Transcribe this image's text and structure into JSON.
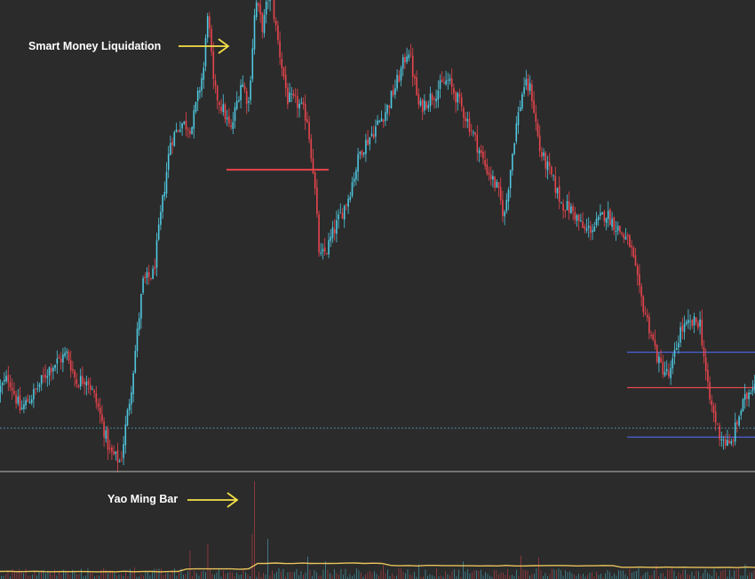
{
  "chart_data": {
    "type": "candlestick",
    "title": "",
    "xlabel": "",
    "ylabel": "",
    "ylim": [
      0,
      100
    ],
    "volume_ylim": [
      0,
      100
    ],
    "grid": false,
    "colors": {
      "up": "#4fc8e0",
      "down": "#e8454d",
      "volume_ma": "#e8c25a",
      "level_red": "#e8454d",
      "level_blue": "#4a63d9",
      "dotted_level": "#4fa9c8",
      "separator": "#bdbdbd",
      "arrow": "#f5e04a"
    },
    "waypoints": [
      [
        0,
        17
      ],
      [
        12,
        20
      ],
      [
        25,
        13
      ],
      [
        42,
        17
      ],
      [
        58,
        22
      ],
      [
        78,
        25
      ],
      [
        88,
        19
      ],
      [
        100,
        20
      ],
      [
        112,
        14
      ],
      [
        126,
        4
      ],
      [
        138,
        2
      ],
      [
        150,
        18
      ],
      [
        163,
        40
      ],
      [
        175,
        42
      ],
      [
        183,
        54
      ],
      [
        194,
        70
      ],
      [
        206,
        74
      ],
      [
        218,
        73
      ],
      [
        232,
        86
      ],
      [
        236,
        98
      ],
      [
        243,
        81
      ],
      [
        255,
        76
      ],
      [
        262,
        72
      ],
      [
        274,
        83
      ],
      [
        282,
        78
      ],
      [
        290,
        100
      ],
      [
        298,
        94
      ],
      [
        306,
        103
      ],
      [
        316,
        90
      ],
      [
        326,
        79
      ],
      [
        338,
        78
      ],
      [
        348,
        75
      ],
      [
        356,
        62
      ],
      [
        362,
        45
      ],
      [
        370,
        47
      ],
      [
        378,
        51
      ],
      [
        394,
        58
      ],
      [
        408,
        68
      ],
      [
        422,
        72
      ],
      [
        438,
        77
      ],
      [
        452,
        84
      ],
      [
        462,
        90
      ],
      [
        474,
        77
      ],
      [
        490,
        80
      ],
      [
        506,
        83
      ],
      [
        520,
        78
      ],
      [
        534,
        72
      ],
      [
        548,
        65
      ],
      [
        562,
        60
      ],
      [
        570,
        54
      ],
      [
        582,
        72
      ],
      [
        592,
        82
      ],
      [
        600,
        81
      ],
      [
        610,
        68
      ],
      [
        622,
        63
      ],
      [
        634,
        57
      ],
      [
        648,
        55
      ],
      [
        660,
        51
      ],
      [
        672,
        52
      ],
      [
        684,
        55
      ],
      [
        700,
        51
      ],
      [
        712,
        48
      ],
      [
        722,
        38
      ],
      [
        734,
        30
      ],
      [
        744,
        23
      ],
      [
        756,
        20
      ],
      [
        768,
        30
      ],
      [
        778,
        31
      ],
      [
        790,
        32
      ],
      [
        800,
        16
      ],
      [
        812,
        8
      ],
      [
        824,
        5
      ],
      [
        836,
        13
      ],
      [
        850,
        19
      ]
    ],
    "price_levels": [
      {
        "color": "level_red",
        "y": 64,
        "x_range": [
          255,
          370
        ]
      },
      {
        "color": "level_blue",
        "y": 25.3,
        "x_range": [
          706,
          850
        ]
      },
      {
        "color": "level_red",
        "y": 17.8,
        "x_range": [
          706,
          850
        ]
      },
      {
        "color": "level_blue",
        "y": 7.3,
        "x_range": [
          706,
          850
        ]
      },
      {
        "color": "dotted_level",
        "y": 9.2,
        "x_range": [
          0,
          850
        ],
        "style": "dotted"
      }
    ],
    "volume_spikes": [
      {
        "x": 285,
        "v": 100
      },
      {
        "x": 282,
        "v": 46
      },
      {
        "x": 301,
        "v": 41
      },
      {
        "x": 232,
        "v": 36
      },
      {
        "x": 212,
        "v": 29
      },
      {
        "x": 345,
        "v": 23
      },
      {
        "x": 364,
        "v": 18
      },
      {
        "x": 520,
        "v": 18
      },
      {
        "x": 586,
        "v": 24
      },
      {
        "x": 604,
        "v": 22
      },
      {
        "x": 738,
        "v": 14
      },
      {
        "x": 756,
        "v": 13
      },
      {
        "x": 838,
        "v": 15
      },
      {
        "x": 150,
        "v": 12
      },
      {
        "x": 115,
        "v": 11
      },
      {
        "x": 430,
        "v": 14
      },
      {
        "x": 470,
        "v": 15
      }
    ],
    "volume_ma_level": 17
  },
  "annotations": [
    {
      "text": "Smart Money Liquidation"
    },
    {
      "text": "Yao Ming Bar"
    }
  ]
}
